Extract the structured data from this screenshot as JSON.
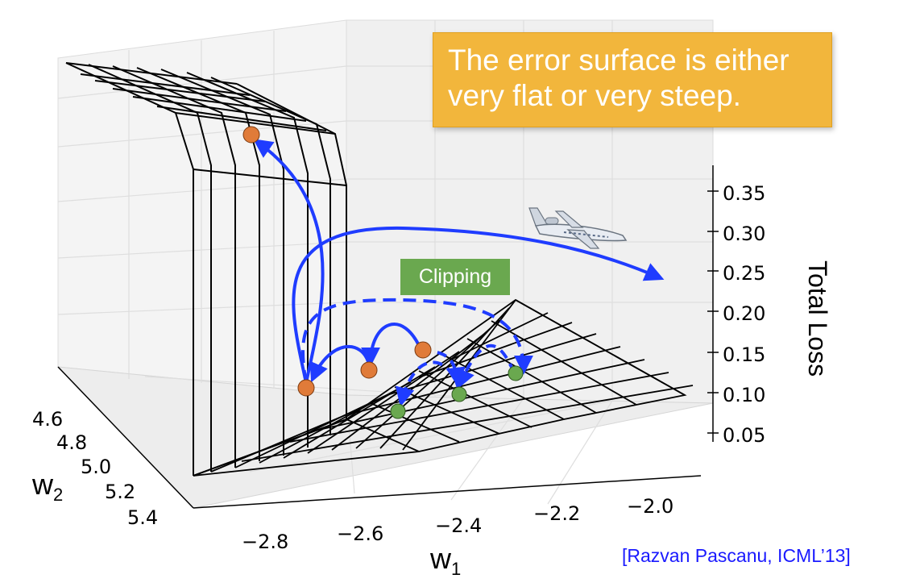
{
  "callout": {
    "line1": "The error surface is either",
    "line2": "very flat or very steep."
  },
  "badge": {
    "label": "Clipping"
  },
  "citation": "[Razvan Pascanu, ICML’13]",
  "chart_data": {
    "type": "surface3d",
    "zlabel": "Total Loss",
    "xlabel_main": "w",
    "xlabel_sub": "1",
    "ylabel_main": "w",
    "ylabel_sub": "2",
    "z_ticks": [
      "0.35",
      "0.30",
      "0.25",
      "0.20",
      "0.15",
      "0.10",
      "0.05"
    ],
    "x_ticks": [
      "−2.8",
      "−2.6",
      "−2.4",
      "−2.2",
      "−2.0"
    ],
    "y_ticks": [
      "4.6",
      "4.8",
      "5.0",
      "5.2",
      "5.4"
    ],
    "points_unclipped_color": "#e07b39",
    "points_clipped_color": "#6aa84f",
    "arrow_color": "#1f3cff",
    "icons": [
      "airplane-icon"
    ]
  }
}
